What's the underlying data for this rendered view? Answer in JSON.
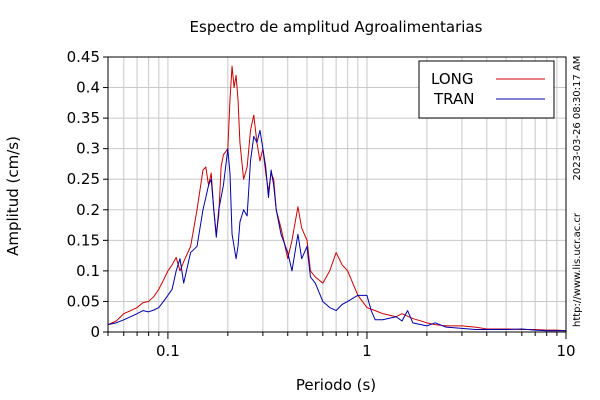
{
  "chart_data": {
    "type": "line",
    "title": "Espectro de amplitud Agroalimentarias",
    "xlabel": "Periodo (s)",
    "ylabel": "Amplitud (cm/s)",
    "x_scale": "log",
    "xlim": [
      0.05,
      10
    ],
    "ylim": [
      0,
      0.45
    ],
    "x_tick_labels": [
      "0.1",
      "1",
      "10"
    ],
    "x_tick_values": [
      0.1,
      1,
      10
    ],
    "y_tick_labels": [
      "0",
      "0.05",
      "0.1",
      "0.15",
      "0.2",
      "0.25",
      "0.3",
      "0.35",
      "0.4",
      "0.45"
    ],
    "y_tick_values": [
      0,
      0.05,
      0.1,
      0.15,
      0.2,
      0.25,
      0.3,
      0.35,
      0.4,
      0.45
    ],
    "grid": true,
    "legend_position": "top-right",
    "timestamp": "2023-03-26 08:30:17 AM",
    "source_url": "http://www.lis.ucr.ac.cr",
    "series": [
      {
        "name": "LONG",
        "color": "#cc0000",
        "x": [
          0.05,
          0.055,
          0.06,
          0.065,
          0.07,
          0.075,
          0.08,
          0.085,
          0.09,
          0.095,
          0.1,
          0.105,
          0.11,
          0.115,
          0.12,
          0.13,
          0.14,
          0.15,
          0.155,
          0.16,
          0.165,
          0.17,
          0.175,
          0.18,
          0.185,
          0.19,
          0.2,
          0.205,
          0.21,
          0.215,
          0.22,
          0.225,
          0.23,
          0.24,
          0.25,
          0.26,
          0.27,
          0.28,
          0.29,
          0.3,
          0.31,
          0.32,
          0.33,
          0.34,
          0.35,
          0.37,
          0.4,
          0.42,
          0.45,
          0.47,
          0.5,
          0.52,
          0.55,
          0.6,
          0.65,
          0.7,
          0.75,
          0.8,
          0.9,
          1.0,
          1.1,
          1.2,
          1.4,
          1.5,
          1.7,
          2.0,
          2.2,
          2.5,
          3.0,
          3.5,
          4.0,
          5.0,
          6.0,
          7.0,
          8.0,
          9.0,
          10.0
        ],
        "y": [
          0.012,
          0.018,
          0.03,
          0.035,
          0.04,
          0.048,
          0.05,
          0.058,
          0.07,
          0.085,
          0.1,
          0.11,
          0.122,
          0.1,
          0.115,
          0.14,
          0.2,
          0.265,
          0.27,
          0.24,
          0.26,
          0.2,
          0.16,
          0.19,
          0.27,
          0.29,
          0.3,
          0.38,
          0.435,
          0.4,
          0.42,
          0.38,
          0.31,
          0.25,
          0.27,
          0.33,
          0.355,
          0.31,
          0.28,
          0.3,
          0.26,
          0.23,
          0.26,
          0.25,
          0.2,
          0.17,
          0.12,
          0.15,
          0.205,
          0.17,
          0.15,
          0.1,
          0.09,
          0.08,
          0.1,
          0.13,
          0.11,
          0.1,
          0.06,
          0.04,
          0.035,
          0.03,
          0.025,
          0.03,
          0.022,
          0.015,
          0.012,
          0.01,
          0.01,
          0.008,
          0.005,
          0.005,
          0.004,
          0.004,
          0.003,
          0.003,
          0.002
        ]
      },
      {
        "name": "TRAN",
        "color": "#0000aa",
        "x": [
          0.05,
          0.055,
          0.06,
          0.065,
          0.07,
          0.075,
          0.08,
          0.085,
          0.09,
          0.095,
          0.1,
          0.105,
          0.11,
          0.115,
          0.12,
          0.13,
          0.14,
          0.15,
          0.155,
          0.16,
          0.165,
          0.17,
          0.175,
          0.18,
          0.19,
          0.2,
          0.205,
          0.21,
          0.215,
          0.22,
          0.225,
          0.23,
          0.24,
          0.25,
          0.26,
          0.27,
          0.28,
          0.29,
          0.3,
          0.31,
          0.32,
          0.33,
          0.34,
          0.35,
          0.37,
          0.4,
          0.42,
          0.45,
          0.47,
          0.5,
          0.52,
          0.55,
          0.6,
          0.65,
          0.7,
          0.75,
          0.8,
          0.9,
          1.0,
          1.05,
          1.1,
          1.2,
          1.4,
          1.5,
          1.6,
          1.7,
          2.0,
          2.2,
          2.5,
          3.0,
          3.5,
          4.0,
          5.0,
          6.0,
          7.0,
          8.0,
          9.0,
          10.0
        ],
        "y": [
          0.012,
          0.015,
          0.02,
          0.025,
          0.03,
          0.035,
          0.033,
          0.036,
          0.04,
          0.05,
          0.06,
          0.07,
          0.1,
          0.12,
          0.08,
          0.13,
          0.14,
          0.2,
          0.22,
          0.24,
          0.25,
          0.2,
          0.155,
          0.2,
          0.24,
          0.3,
          0.26,
          0.16,
          0.14,
          0.12,
          0.14,
          0.18,
          0.2,
          0.19,
          0.28,
          0.32,
          0.31,
          0.33,
          0.3,
          0.27,
          0.22,
          0.265,
          0.24,
          0.2,
          0.16,
          0.13,
          0.1,
          0.16,
          0.12,
          0.14,
          0.09,
          0.08,
          0.05,
          0.04,
          0.035,
          0.045,
          0.05,
          0.06,
          0.06,
          0.035,
          0.02,
          0.02,
          0.025,
          0.018,
          0.035,
          0.015,
          0.01,
          0.015,
          0.008,
          0.006,
          0.004,
          0.004,
          0.004,
          0.005,
          0.003,
          0.002,
          0.002,
          0.002
        ]
      }
    ]
  }
}
